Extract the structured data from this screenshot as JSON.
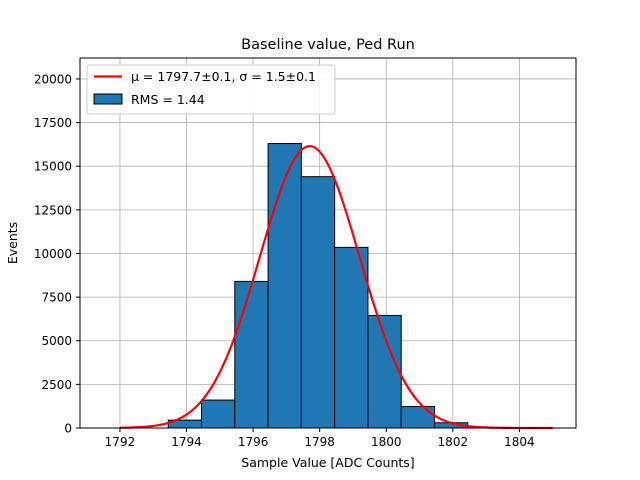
{
  "chart_data": {
    "type": "bar",
    "title": "Baseline value, Ped Run",
    "xlabel": "Sample Value [ADC Counts]",
    "ylabel": "Events",
    "xlim": [
      1790.8,
      1805.7
    ],
    "ylim": [
      0,
      21200
    ],
    "grid": true,
    "legend_position": "top-left",
    "x_ticks": [
      1792,
      1794,
      1796,
      1798,
      1800,
      1802,
      1804
    ],
    "x_tick_labels": [
      "1792",
      "1794",
      "1796",
      "1798",
      "1800",
      "1802",
      "1804"
    ],
    "y_ticks": [
      0,
      2500,
      5000,
      7500,
      10000,
      12500,
      15000,
      17500,
      20000
    ],
    "y_tick_labels": [
      "0",
      "2500",
      "5000",
      "7500",
      "10000",
      "12500",
      "15000",
      "17500",
      "20000"
    ],
    "bins": [
      {
        "x0": 1793.45,
        "x1": 1794.45,
        "value": 450
      },
      {
        "x0": 1794.45,
        "x1": 1795.45,
        "value": 1600
      },
      {
        "x0": 1795.45,
        "x1": 1796.45,
        "value": 8400
      },
      {
        "x0": 1796.45,
        "x1": 1797.45,
        "value": 16300
      },
      {
        "x0": 1797.45,
        "x1": 1798.45,
        "value": 14400
      },
      {
        "x0": 1798.45,
        "x1": 1799.45,
        "value": 10350
      },
      {
        "x0": 1799.45,
        "x1": 1800.45,
        "value": 6450
      },
      {
        "x0": 1800.45,
        "x1": 1801.45,
        "value": 1230
      },
      {
        "x0": 1801.45,
        "x1": 1802.45,
        "value": 300
      }
    ],
    "fit": {
      "mu": 1797.7,
      "sigma": 1.5,
      "amplitude": 16150,
      "x_range": [
        1792,
        1805
      ]
    },
    "legend": [
      {
        "kind": "line",
        "label": "μ = 1797.7±0.1, σ = 1.5±0.1"
      },
      {
        "kind": "bar",
        "label": "RMS = 1.44"
      }
    ],
    "colors": {
      "bar_fill": "#1f77b4",
      "bar_edge": "#000000",
      "fit_line": "#ff0000",
      "grid": "#b0b0b0"
    }
  }
}
